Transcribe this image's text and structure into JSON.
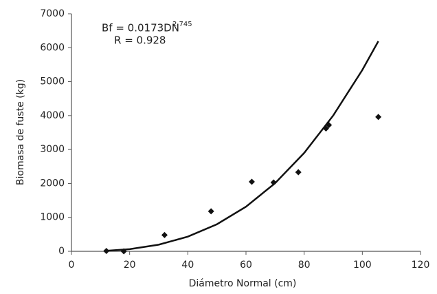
{
  "chart_data": {
    "type": "scatter",
    "x_label": "Diámetro Normal (cm)",
    "y_label": "Biomasa de fuste (kg)",
    "annotations": {
      "equation": "Bf = 0.0173DN",
      "exponent": "2.745",
      "r": "R  = 0.928"
    },
    "x": [
      12,
      18,
      32,
      48,
      62,
      69.5,
      78,
      87.5,
      88.5,
      105.5
    ],
    "values": [
      10,
      0,
      480,
      1180,
      2050,
      2030,
      2330,
      3620,
      3720,
      3960
    ],
    "color": "#111111",
    "fit": {
      "x": [
        12,
        20,
        30,
        40,
        50,
        60,
        70,
        80,
        90,
        100,
        105.5
      ],
      "values": [
        16,
        64,
        196,
        432,
        797,
        1315,
        2007,
        2899,
        4003,
        5344,
        6190
      ],
      "color": "#111111"
    },
    "xlim": [
      0,
      120
    ],
    "xticks": [
      0,
      20,
      40,
      60,
      80,
      100,
      120
    ],
    "ylim": [
      0,
      7000
    ],
    "yticks": [
      0,
      1000,
      2000,
      3000,
      4000,
      5000,
      6000,
      7000
    ],
    "grid": false
  }
}
